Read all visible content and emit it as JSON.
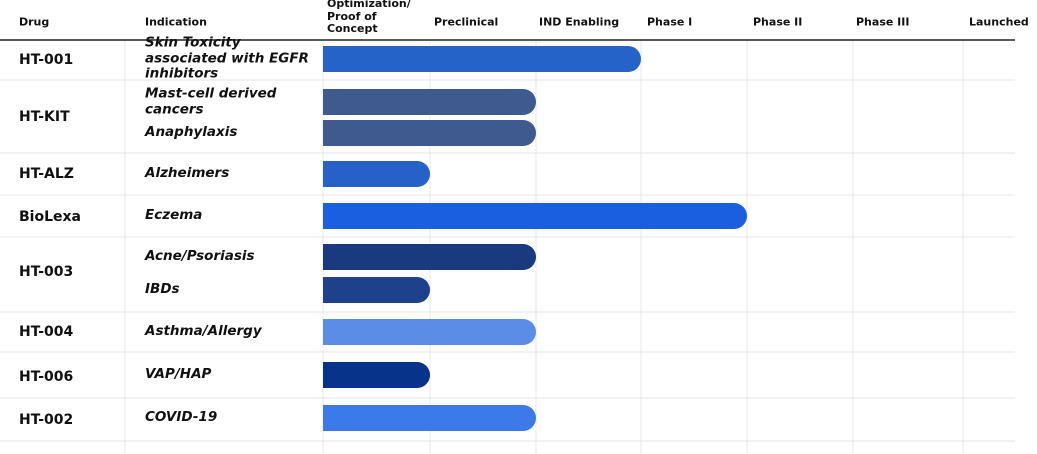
{
  "header": {
    "drug": "Drug",
    "indication": "Indication",
    "stages": [
      "Optimization/ Proof of Concept",
      "Preclinical",
      "IND Enabling",
      "Phase I",
      "Phase II",
      "Phase III",
      "Launched"
    ]
  },
  "rows": [
    {
      "drug": "HT-001",
      "indications": [
        {
          "name": "Skin Toxicity associated with EGFR inhibitors",
          "progress": 3,
          "color": "#2563c9"
        }
      ]
    },
    {
      "drug": "HT-KIT",
      "indications": [
        {
          "name": "Mast-cell derived cancers",
          "progress": 2,
          "color": "#3e5a8f"
        },
        {
          "name": "Anaphylaxis",
          "progress": 2,
          "color": "#3e5a8f"
        }
      ]
    },
    {
      "drug": "HT-ALZ",
      "indications": [
        {
          "name": "Alzheimers",
          "progress": 1,
          "color": "#2561c7"
        }
      ]
    },
    {
      "drug": "BioLexa",
      "indications": [
        {
          "name": "Eczema",
          "progress": 4,
          "color": "#1a5fe0"
        }
      ]
    },
    {
      "drug": "HT-003",
      "indications": [
        {
          "name": "Acne/Psoriasis",
          "progress": 2,
          "color": "#1a3a80"
        },
        {
          "name": "IBDs",
          "progress": 1,
          "color": "#1e418c"
        }
      ]
    },
    {
      "drug": "HT-004",
      "indications": [
        {
          "name": "Asthma/Allergy",
          "progress": 2,
          "color": "#5b8de6"
        }
      ]
    },
    {
      "drug": "HT-006",
      "indications": [
        {
          "name": "VAP/HAP",
          "progress": 1,
          "color": "#08338a"
        }
      ]
    },
    {
      "drug": "HT-002",
      "indications": [
        {
          "name": "COVID-19",
          "progress": 2,
          "color": "#3b7ae8"
        }
      ]
    }
  ]
}
